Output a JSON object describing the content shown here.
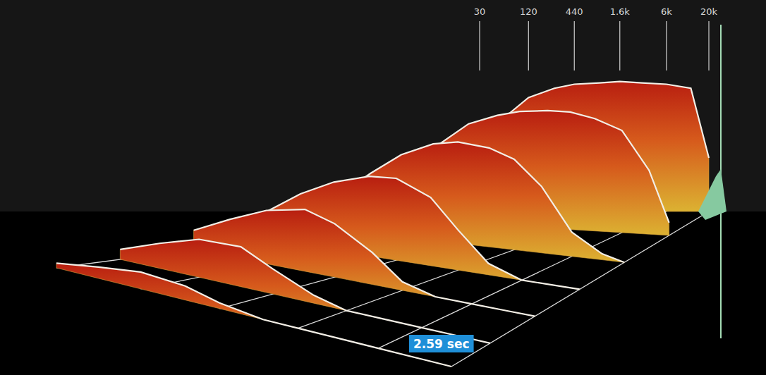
{
  "chart_data": {
    "type": "waterfall",
    "log": "x",
    "grid": true,
    "tick_labels": "x",
    "xlim": [
      30,
      20000
    ],
    "xticks": [
      30,
      120,
      440,
      {
        "value": 1600,
        "label": "1.6k"
      },
      {
        "value": 6000,
        "label": "6k"
      },
      {
        "value": 20000,
        "label": "20k"
      }
    ],
    "ylim": [
      0,
      100
    ],
    "zlim": [
      0,
      2.59
    ],
    "x": [
      30,
      60,
      120,
      250,
      440,
      900,
      1600,
      3000,
      6000,
      12000,
      20000
    ],
    "series": [
      {
        "time": 0,
        "values": [
          55,
          70,
          85,
          92,
          95,
          96,
          97,
          96,
          95,
          92,
          40
        ]
      },
      {
        "time": 0.4,
        "values": [
          45,
          62,
          78,
          86,
          90,
          92,
          92,
          88,
          80,
          50,
          10
        ]
      },
      {
        "time": 0.85,
        "values": [
          30,
          50,
          68,
          80,
          84,
          82,
          75,
          55,
          20,
          5,
          0
        ]
      },
      {
        "time": 1.3,
        "values": [
          25,
          45,
          60,
          70,
          72,
          60,
          35,
          10,
          0,
          0,
          0
        ]
      },
      {
        "time": 1.75,
        "values": [
          18,
          35,
          50,
          58,
          50,
          30,
          8,
          0,
          0,
          0,
          0
        ]
      },
      {
        "time": 2.2,
        "values": [
          10,
          25,
          38,
          40,
          25,
          8,
          0,
          0,
          0,
          0,
          0
        ]
      },
      {
        "time": 2.59,
        "values": [
          5,
          12,
          18,
          15,
          6,
          0,
          0,
          0,
          0,
          0,
          0
        ]
      }
    ],
    "annotations": [
      {
        "text": "2.59 sec",
        "time": 2.59
      }
    ]
  }
}
